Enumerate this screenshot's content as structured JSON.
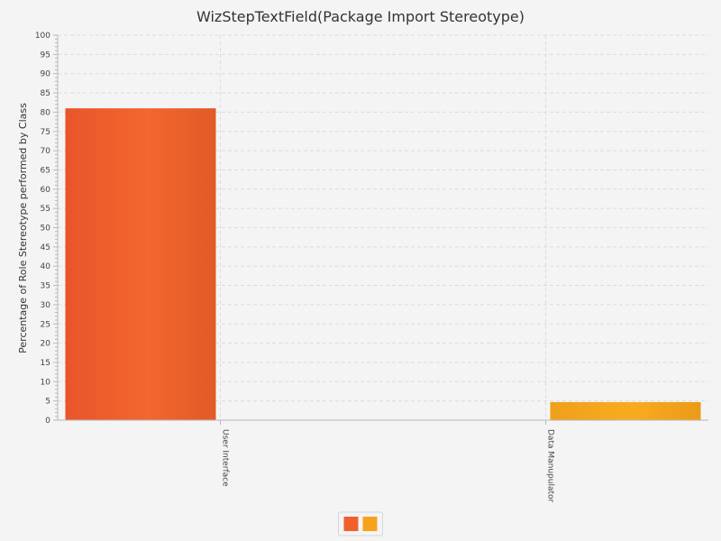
{
  "chart_data": {
    "type": "bar",
    "title": "WizStepTextField(Package Import Stereotype)",
    "xlabel": "",
    "ylabel": "Percentage of Role Stereotype performed by Class",
    "categories": [
      "User Interface",
      "Data Manupulator"
    ],
    "series": [
      {
        "values": [
          81,
          0
        ],
        "color": "#f0602c"
      },
      {
        "values": [
          0,
          4.7
        ],
        "color": "#f7a21c"
      }
    ],
    "ylim": [
      0,
      100
    ],
    "ytick_step": 5,
    "grid": true,
    "legend": "bottom-center"
  }
}
